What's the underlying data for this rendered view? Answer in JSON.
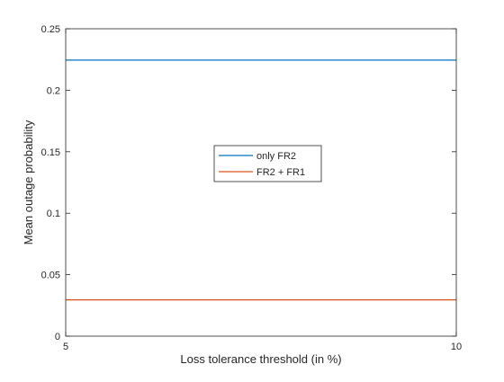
{
  "chart_data": {
    "type": "line",
    "xlabel": "Loss tolerance threshold (in %)",
    "ylabel": "Mean outage probability",
    "xlim": [
      5,
      10
    ],
    "ylim": [
      0,
      0.25
    ],
    "x_ticks": [
      5,
      10
    ],
    "y_ticks": [
      0,
      0.05,
      0.1,
      0.15,
      0.2,
      0.25
    ],
    "x_tick_labels": [
      "5",
      "10"
    ],
    "y_tick_labels": [
      "0",
      "0.05",
      "0.1",
      "0.15",
      "0.2",
      "0.25"
    ],
    "grid": false,
    "legend_position": "center",
    "series": [
      {
        "name": "only FR2",
        "color": "#0072BD",
        "x": [
          5,
          10
        ],
        "y": [
          0.2245,
          0.2245
        ]
      },
      {
        "name": "FR2 + FR1",
        "color": "#D95319",
        "x": [
          5,
          10
        ],
        "y": [
          0.0295,
          0.0295
        ]
      }
    ]
  }
}
